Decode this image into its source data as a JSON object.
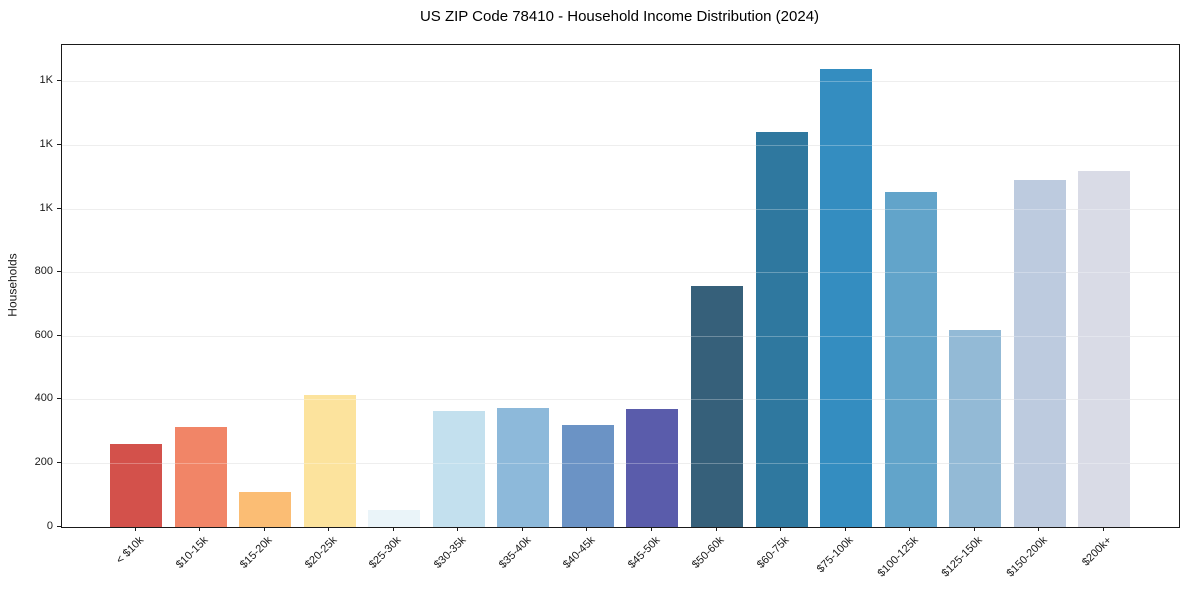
{
  "chart_data": {
    "type": "bar",
    "title": "US ZIP Code 78410 - Household Income Distribution (2024)",
    "xlabel": "",
    "ylabel": "Households",
    "categories": [
      "< $10k",
      "$10-15k",
      "$15-20k",
      "$20-25k",
      "$25-30k",
      "$30-35k",
      "$35-40k",
      "$40-45k",
      "$45-50k",
      "$50-60k",
      "$60-75k",
      "$75-100k",
      "$100-125k",
      "$125-150k",
      "$150-200k",
      "$200k+"
    ],
    "values": [
      260,
      315,
      110,
      416,
      53,
      365,
      375,
      322,
      370,
      758,
      1243,
      1440,
      1054,
      620,
      1093,
      1120
    ],
    "bar_colors": [
      "#d3514b",
      "#f18567",
      "#fbbd74",
      "#fce39d",
      "#eaf4f9",
      "#c3e0ee",
      "#8db9da",
      "#6b93c5",
      "#5a5cab",
      "#36607a",
      "#2f789f",
      "#348dc0",
      "#62a4ca",
      "#93bad6",
      "#bdcbdf",
      "#d9dbe6"
    ],
    "ylim": [
      0,
      1516
    ],
    "yticks": {
      "values": [
        0,
        200,
        400,
        600,
        800,
        1000,
        1200,
        1400
      ],
      "labels": [
        "0",
        "200",
        "400",
        "600",
        "800",
        "1K",
        "1K",
        "1K"
      ]
    },
    "grid": "horizontal",
    "legend": "none",
    "colors": {
      "background": "#ffffff",
      "spine": "#1a1a1a",
      "gridline": "#e8e8e8",
      "text": "#1a1a1a"
    }
  }
}
